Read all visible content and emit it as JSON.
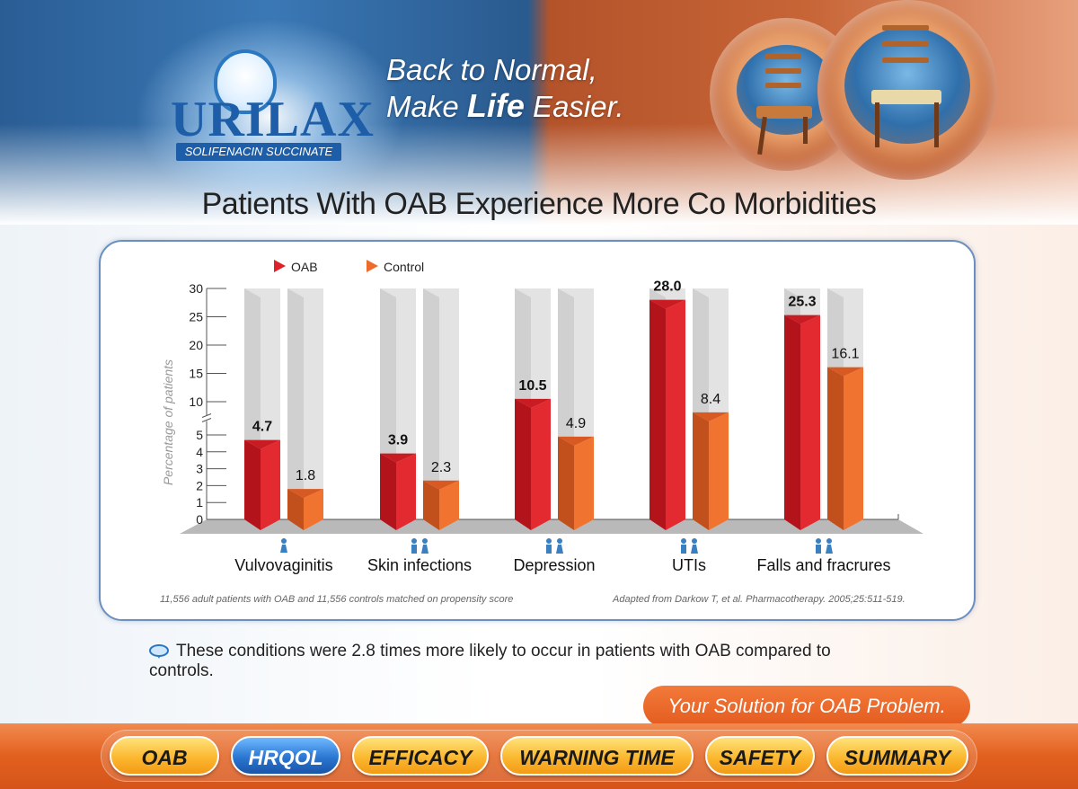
{
  "brand": {
    "logo_text": "URILAX",
    "logo_subtitle": "SOLIFENACIN SUCCINATE",
    "tagline_line1": "Back to Normal,",
    "tagline_line2_pre": "Make ",
    "tagline_line2_bold": "Life",
    "tagline_line2_post": " Easier."
  },
  "page_title": "Patients With OAB Experience More Co Morbidities",
  "chart_data": {
    "type": "bar",
    "title": "Patients With OAB Experience More Co Morbidities",
    "ylabel": "Percentage of patients",
    "xlabel": "",
    "ylim": [
      0,
      30
    ],
    "axis_break": [
      5,
      10
    ],
    "y_ticks": [
      0,
      1,
      2,
      3,
      4,
      5,
      10,
      15,
      20,
      25,
      30
    ],
    "legend_placement": "top-left",
    "categories": [
      "Vulvovaginitis",
      "Skin infections",
      "Depression",
      "UTIs",
      "Falls and fracrures"
    ],
    "series": [
      {
        "name": "OAB",
        "values": [
          4.7,
          3.9,
          10.5,
          28.0,
          25.3
        ],
        "labels": [
          "4.7",
          "3.9",
          "10.5",
          "28.0",
          "25.3"
        ],
        "color": "#e0212a"
      },
      {
        "name": "Control",
        "values": [
          1.8,
          2.3,
          4.9,
          8.4,
          16.1
        ],
        "labels": [
          "1.8",
          "2.3",
          "4.9",
          "8.4",
          "16.1"
        ],
        "color": "#ef6b2a"
      }
    ],
    "category_icons": [
      "female-icon",
      "male-female-icon",
      "male-female-icon",
      "male-female-icon",
      "male-female-icon"
    ]
  },
  "footnotes": {
    "left": "11,556 adult patients with OAB and 11,556 controls matched on propensity score",
    "right": "Adapted from Darkow T, et al. Pharmacotherapy. 2005;25:511-519."
  },
  "note_text": "These conditions were 2.8 times more likely to occur in patients with OAB compared to controls.",
  "solution_text": "Your Solution for OAB Problem.",
  "nav": [
    {
      "label": "OAB",
      "active": false
    },
    {
      "label": "HRQOL",
      "active": true
    },
    {
      "label": "EFFICACY",
      "active": false
    },
    {
      "label": "WARNING TIME",
      "active": false
    },
    {
      "label": "SAFETY",
      "active": false
    },
    {
      "label": "SUMMARY",
      "active": false
    }
  ],
  "colors": {
    "oab": "#e0212a",
    "control": "#ef6b2a",
    "active_nav": "#2a76d2",
    "nav": "#fbb830"
  }
}
